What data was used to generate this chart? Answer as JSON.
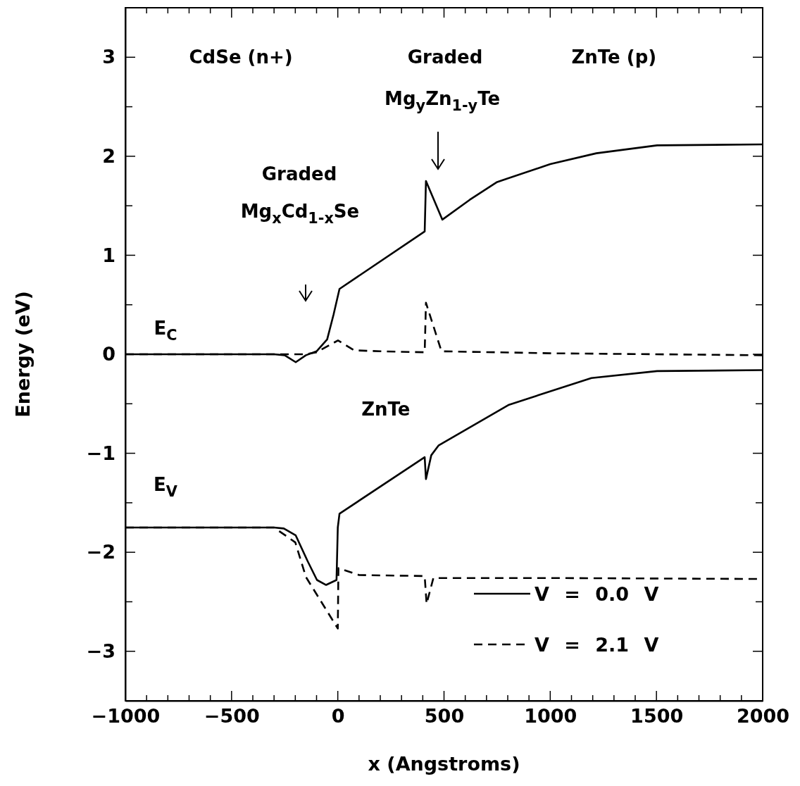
{
  "chart_data": {
    "type": "line",
    "xlabel": "x (Angstroms)",
    "ylabel": "Energy (eV)",
    "xlim": [
      -1000,
      2000
    ],
    "ylim": [
      -3.5,
      3.5
    ],
    "xticks": [
      -1000,
      {
        "value": -900,
        "label": null
      },
      {
        "value": -800,
        "label": null
      },
      {
        "value": -700,
        "label": null
      },
      {
        "value": -600,
        "label": null
      },
      -500,
      {
        "value": -400,
        "label": null
      },
      {
        "value": -300,
        "label": null
      },
      {
        "value": -200,
        "label": null
      },
      {
        "value": -100,
        "label": null
      },
      0,
      {
        "value": 100,
        "label": null
      },
      {
        "value": 200,
        "label": null
      },
      {
        "value": 300,
        "label": null
      },
      {
        "value": 400,
        "label": null
      },
      500,
      {
        "value": 600,
        "label": null
      },
      {
        "value": 700,
        "label": null
      },
      {
        "value": 800,
        "label": null
      },
      {
        "value": 900,
        "label": null
      },
      1000,
      {
        "value": 1100,
        "label": null
      },
      {
        "value": 1200,
        "label": null
      },
      {
        "value": 1300,
        "label": null
      },
      {
        "value": 1400,
        "label": null
      },
      1500,
      {
        "value": 1600,
        "label": null
      },
      {
        "value": 1700,
        "label": null
      },
      {
        "value": 1800,
        "label": null
      },
      {
        "value": 1900,
        "label": null
      },
      2000
    ],
    "yticks": [
      -3,
      {
        "value": -2.5,
        "label": null
      },
      -2,
      {
        "value": -1.5,
        "label": null
      },
      -1,
      {
        "value": -0.5,
        "label": null
      },
      0,
      {
        "value": 0.5,
        "label": null
      },
      1,
      {
        "value": 1.5,
        "label": null
      },
      2,
      {
        "value": 2.5,
        "label": null
      },
      3
    ],
    "grid": false,
    "legend": "bottom right",
    "marker": "none",
    "series": [
      {
        "name": "V = 0.0 V",
        "color": "#000000",
        "line_style": "solid",
        "x": [
          -1000,
          -300,
          -250,
          -198,
          -150,
          -100,
          -50,
          -20,
          8,
          409,
          415,
          492,
          621,
          750,
          1000,
          1217,
          1503,
          2000
        ],
        "values": [
          0,
          0,
          -0.01,
          -0.08,
          -0.01,
          0.03,
          0.15,
          0.4,
          0.66,
          1.24,
          1.75,
          1.36,
          1.56,
          1.74,
          1.92,
          2.03,
          2.11,
          2.12
        ]
      },
      {
        "color": "#000000",
        "line_style": "solid",
        "x": [
          -1000,
          -300,
          -254,
          -198,
          -142,
          -98,
          -55,
          -6,
          0,
          8,
          409,
          415,
          440,
          475,
          806,
          1194,
          1503,
          2000
        ],
        "values": [
          -1.75,
          -1.75,
          -1.76,
          -1.83,
          -2.09,
          -2.28,
          -2.33,
          -2.28,
          -1.75,
          -1.61,
          -1.04,
          -1.26,
          -1.02,
          -0.92,
          -0.51,
          -0.24,
          -0.17,
          -0.16
        ]
      },
      {
        "name": "V = 2.1 V",
        "color": "#000000",
        "line_style": "dashed",
        "x": [
          -1000,
          -150,
          -100,
          1,
          77,
          200,
          409,
          415,
          488,
          1000,
          2000
        ],
        "values": [
          0,
          0,
          0.02,
          0.14,
          0.04,
          0.03,
          0.02,
          0.52,
          0.03,
          0.01,
          -0.01
        ]
      },
      {
        "color": "#000000",
        "line_style": "dashed",
        "x": [
          -1000,
          -300,
          -200,
          -150,
          0,
          3,
          100,
          409,
          418,
          450,
          1000,
          2000
        ],
        "values": [
          -1.75,
          -1.75,
          -1.9,
          -2.25,
          -2.77,
          -2.16,
          -2.23,
          -2.24,
          -2.52,
          -2.26,
          -2.26,
          -2.27
        ]
      }
    ],
    "annotations": [
      "CdSe (n+)",
      "Graded",
      "ZnTe (p)",
      "Mg$_{y}$Zn$_{1-y}$Te",
      "Graded",
      "Mg$_{x}$Cd$_{1-x}$Se",
      "E$_{C}$",
      "ZnTe",
      "E$_{V}$"
    ]
  }
}
